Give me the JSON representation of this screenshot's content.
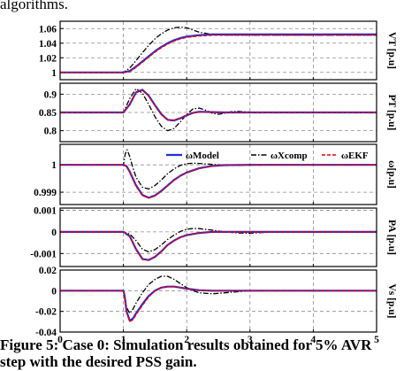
{
  "top_text": "algorithms.",
  "caption_line1": "Figure 5: Case 0: Simulation results obtained for 5% AVR",
  "caption_line2": "step with the desired PSS gain.",
  "colors": {
    "model": "#1f2fd6",
    "xcomp": "#000000",
    "ekf": "#e0001a",
    "grid": "#8c8c8c"
  },
  "chart_data": {
    "type": "line",
    "x_ticks": [
      "0",
      "1",
      "2",
      "3",
      "4",
      "5"
    ],
    "x_range": [
      0,
      5
    ],
    "legend": {
      "placement": "top-right",
      "entries": [
        "ωModel",
        "ωXcomp",
        "ωEKF"
      ]
    },
    "subplots": [
      {
        "ylabel": "VT [p.u]",
        "ylim": [
          0.99,
          1.07
        ],
        "y_ticks": [
          1.0,
          1.02,
          1.04,
          1.06
        ],
        "y_tick_labels": [
          "1",
          "1.02",
          "1.04",
          "1.06"
        ],
        "grid": true,
        "series": [
          {
            "name": "ωModel",
            "x": [
              0,
              1,
              1.1,
              1.2,
              1.3,
              1.4,
              1.5,
              1.6,
              1.7,
              1.8,
              1.9,
              2.0,
              2.2,
              2.4,
              2.6,
              2.8,
              3.0,
              3.5,
              4.0,
              4.5,
              5.0
            ],
            "y": [
              1.0,
              1.0,
              1.002,
              1.008,
              1.015,
              1.022,
              1.029,
              1.035,
              1.04,
              1.044,
              1.047,
              1.049,
              1.051,
              1.052,
              1.052,
              1.052,
              1.052,
              1.052,
              1.052,
              1.052,
              1.052
            ]
          },
          {
            "name": "ωEKF",
            "x": [
              0,
              1,
              1.1,
              1.2,
              1.3,
              1.4,
              1.5,
              1.6,
              1.7,
              1.8,
              1.9,
              2.0,
              2.2,
              2.4,
              2.6,
              2.8,
              3.0,
              3.5,
              4.0,
              4.5,
              5.0
            ],
            "y": [
              1.0,
              1.0,
              1.001,
              1.007,
              1.014,
              1.021,
              1.028,
              1.034,
              1.039,
              1.043,
              1.046,
              1.048,
              1.05,
              1.051,
              1.051,
              1.051,
              1.051,
              1.051,
              1.051,
              1.051,
              1.051
            ]
          },
          {
            "name": "ωXcomp",
            "x": [
              0,
              1,
              1.1,
              1.2,
              1.3,
              1.4,
              1.5,
              1.6,
              1.7,
              1.8,
              1.9,
              2.0,
              2.1,
              2.2,
              2.4,
              2.6,
              2.8,
              3.0,
              3.5,
              4.0,
              4.5,
              5.0
            ],
            "y": [
              1.0,
              1.0,
              1.006,
              1.016,
              1.027,
              1.037,
              1.046,
              1.053,
              1.058,
              1.061,
              1.062,
              1.061,
              1.058,
              1.055,
              1.052,
              1.051,
              1.051,
              1.051,
              1.051,
              1.051,
              1.051,
              1.051
            ]
          }
        ]
      },
      {
        "ylabel": "PT [p.u]",
        "ylim": [
          0.77,
          0.93
        ],
        "y_ticks": [
          0.8,
          0.85,
          0.9
        ],
        "y_tick_labels": [
          "0.8",
          "0.85",
          "0.9"
        ],
        "grid": true,
        "series": [
          {
            "name": "ωModel",
            "x": [
              0,
              1,
              1.1,
              1.2,
              1.3,
              1.4,
              1.5,
              1.6,
              1.7,
              1.8,
              1.9,
              2.0,
              2.1,
              2.2,
              2.4,
              2.6,
              2.8,
              3.0,
              3.5,
              4.0,
              5.0
            ],
            "y": [
              0.85,
              0.85,
              0.872,
              0.905,
              0.912,
              0.896,
              0.87,
              0.845,
              0.83,
              0.828,
              0.834,
              0.842,
              0.849,
              0.852,
              0.851,
              0.85,
              0.85,
              0.85,
              0.85,
              0.85,
              0.85
            ]
          },
          {
            "name": "ωEKF",
            "x": [
              0,
              1,
              1.1,
              1.2,
              1.3,
              1.4,
              1.5,
              1.6,
              1.7,
              1.8,
              1.9,
              2.0,
              2.1,
              2.2,
              2.4,
              2.6,
              2.8,
              3.0,
              3.5,
              4.0,
              5.0
            ],
            "y": [
              0.85,
              0.85,
              0.873,
              0.906,
              0.911,
              0.895,
              0.868,
              0.844,
              0.83,
              0.829,
              0.835,
              0.843,
              0.849,
              0.851,
              0.851,
              0.85,
              0.85,
              0.85,
              0.85,
              0.85,
              0.85
            ]
          },
          {
            "name": "ωXcomp",
            "x": [
              0,
              1,
              1.1,
              1.2,
              1.3,
              1.4,
              1.5,
              1.6,
              1.7,
              1.8,
              1.9,
              2.0,
              2.1,
              2.2,
              2.3,
              2.4,
              2.5,
              2.6,
              2.7,
              2.8,
              3.0,
              3.5,
              4.0,
              5.0
            ],
            "y": [
              0.85,
              0.85,
              0.888,
              0.915,
              0.903,
              0.872,
              0.838,
              0.812,
              0.8,
              0.806,
              0.824,
              0.845,
              0.86,
              0.862,
              0.856,
              0.848,
              0.845,
              0.848,
              0.852,
              0.853,
              0.851,
              0.85,
              0.85,
              0.85
            ]
          }
        ]
      },
      {
        "ylabel": "ω[p.u]",
        "ylim": [
          0.99855,
          1.00075
        ],
        "y_ticks": [
          0.999,
          1.0
        ],
        "y_tick_labels": [
          "0.999",
          "1"
        ],
        "grid": true,
        "series": [
          {
            "name": "ωModel",
            "x": [
              0,
              1,
              1.05,
              1.1,
              1.2,
              1.3,
              1.4,
              1.5,
              1.6,
              1.7,
              1.8,
              1.9,
              2.0,
              2.2,
              2.4,
              2.6,
              3.0,
              3.5,
              4.0,
              5.0
            ],
            "y": [
              1.0,
              1.0,
              0.99995,
              0.99975,
              0.99925,
              0.9989,
              0.9988,
              0.99888,
              0.99905,
              0.99925,
              0.99945,
              0.9996,
              0.99972,
              0.99988,
              0.99996,
              0.99999,
              1.0,
              1.0,
              1.0,
              1.0
            ]
          },
          {
            "name": "ωEKF",
            "x": [
              0,
              1,
              1.05,
              1.1,
              1.2,
              1.3,
              1.4,
              1.5,
              1.6,
              1.7,
              1.8,
              1.9,
              2.0,
              2.2,
              2.4,
              2.6,
              3.0,
              3.5,
              4.0,
              5.0
            ],
            "y": [
              1.0,
              1.0,
              0.99994,
              0.99972,
              0.99922,
              0.99888,
              0.99879,
              0.99887,
              0.99904,
              0.99924,
              0.99944,
              0.9996,
              0.99971,
              0.99987,
              0.99995,
              0.99999,
              1.0,
              1.0,
              1.0,
              1.0
            ]
          },
          {
            "name": "ωXcomp",
            "x": [
              0,
              1,
              1.03,
              1.06,
              1.1,
              1.15,
              1.2,
              1.3,
              1.4,
              1.5,
              1.6,
              1.7,
              1.8,
              1.9,
              2.0,
              2.1,
              2.2,
              2.4,
              2.6,
              2.8,
              3.0,
              3.5,
              4.0,
              5.0
            ],
            "y": [
              1.0,
              1.0,
              1.0004,
              1.00055,
              1.0003,
              0.9999,
              0.99955,
              0.99918,
              0.99912,
              0.99925,
              0.99945,
              0.99968,
              0.99985,
              0.99998,
              1.00004,
              1.00006,
              1.00005,
              1.00002,
              0.99999,
              0.99998,
              0.99999,
              1.0,
              1.0,
              1.0
            ]
          }
        ]
      },
      {
        "ylabel": "PA [p.u]",
        "ylim": [
          -0.0016,
          0.0011
        ],
        "y_ticks": [
          -0.001,
          0.0,
          0.001
        ],
        "y_tick_labels": [
          "-0.001",
          "0",
          "0.001"
        ],
        "grid": true,
        "series": [
          {
            "name": "ωModel",
            "x": [
              0,
              1,
              1.1,
              1.2,
              1.3,
              1.4,
              1.5,
              1.6,
              1.7,
              1.8,
              1.9,
              2.0,
              2.2,
              2.4,
              2.6,
              3.0,
              3.5,
              4.0,
              5.0
            ],
            "y": [
              0,
              0,
              -0.0002,
              -0.0008,
              -0.00125,
              -0.0013,
              -0.00115,
              -0.0009,
              -0.0006,
              -0.0004,
              -0.00025,
              -0.00015,
              -5e-05,
              0,
              0,
              0,
              0,
              0,
              0
            ]
          },
          {
            "name": "ωEKF",
            "x": [
              0,
              1,
              1.1,
              1.2,
              1.3,
              1.4,
              1.5,
              1.6,
              1.7,
              1.8,
              1.9,
              2.0,
              2.2,
              2.4,
              2.6,
              3.0,
              3.5,
              4.0,
              5.0
            ],
            "y": [
              0,
              0,
              -0.00022,
              -0.00082,
              -0.00127,
              -0.00131,
              -0.00116,
              -0.0009,
              -0.0006,
              -0.0004,
              -0.00025,
              -0.00014,
              -4e-05,
              0,
              0,
              0,
              0,
              0,
              0
            ]
          },
          {
            "name": "ωXcomp",
            "x": [
              0,
              1,
              1.1,
              1.2,
              1.3,
              1.4,
              1.5,
              1.6,
              1.7,
              1.8,
              1.9,
              2.0,
              2.1,
              2.2,
              2.4,
              2.6,
              2.8,
              3.0,
              3.2,
              3.5,
              4.0,
              5.0
            ],
            "y": [
              0,
              0,
              -0.0001,
              -0.0004,
              -0.0008,
              -0.00092,
              -0.00082,
              -0.0006,
              -0.00035,
              -0.00015,
              2e-05,
              0.00012,
              0.00016,
              0.00015,
              8e-05,
              0.0,
              -5e-05,
              -6e-05,
              -3e-05,
              0,
              0,
              0
            ]
          }
        ]
      },
      {
        "ylabel": "Vs [p.u]",
        "ylim": [
          -0.04,
          0.02
        ],
        "y_ticks": [
          -0.04,
          -0.02,
          0.0,
          0.02
        ],
        "y_tick_labels": [
          "-0.04",
          "-0.02",
          "0",
          "0.02"
        ],
        "grid": true,
        "series": [
          {
            "name": "ωModel",
            "x": [
              0,
              1,
              1.02,
              1.05,
              1.1,
              1.15,
              1.2,
              1.3,
              1.4,
              1.5,
              1.6,
              1.7,
              1.8,
              1.9,
              2.0,
              2.2,
              2.4,
              2.6,
              3.0,
              4.0,
              5.0
            ],
            "y": [
              0,
              0,
              -0.005,
              -0.02,
              -0.029,
              -0.027,
              -0.022,
              -0.013,
              -0.005,
              0.0,
              0.003,
              0.004,
              0.004,
              0.003,
              0.002,
              0.0005,
              0,
              0,
              0,
              0,
              0
            ]
          },
          {
            "name": "ωEKF",
            "x": [
              0,
              1,
              1.02,
              1.05,
              1.1,
              1.15,
              1.2,
              1.3,
              1.4,
              1.5,
              1.6,
              1.7,
              1.8,
              1.9,
              2.0,
              2.2,
              2.4,
              2.6,
              3.0,
              4.0,
              5.0
            ],
            "y": [
              0,
              0,
              -0.006,
              -0.021,
              -0.03,
              -0.028,
              -0.023,
              -0.014,
              -0.006,
              0.0,
              0.003,
              0.004,
              0.004,
              0.003,
              0.002,
              0.0005,
              0,
              0,
              0,
              0,
              0
            ]
          },
          {
            "name": "ωXcomp",
            "x": [
              0,
              1,
              1.02,
              1.05,
              1.1,
              1.15,
              1.2,
              1.3,
              1.4,
              1.5,
              1.6,
              1.7,
              1.8,
              1.9,
              2.0,
              2.1,
              2.2,
              2.4,
              2.6,
              2.8,
              3.0,
              3.5,
              4.0,
              5.0
            ],
            "y": [
              0,
              0,
              -0.004,
              -0.016,
              -0.022,
              -0.018,
              -0.012,
              -0.002,
              0.006,
              0.011,
              0.014,
              0.014,
              0.011,
              0.007,
              0.003,
              0.0,
              -0.002,
              -0.003,
              -0.002,
              -0.001,
              0,
              0,
              0,
              0
            ]
          }
        ]
      }
    ]
  }
}
